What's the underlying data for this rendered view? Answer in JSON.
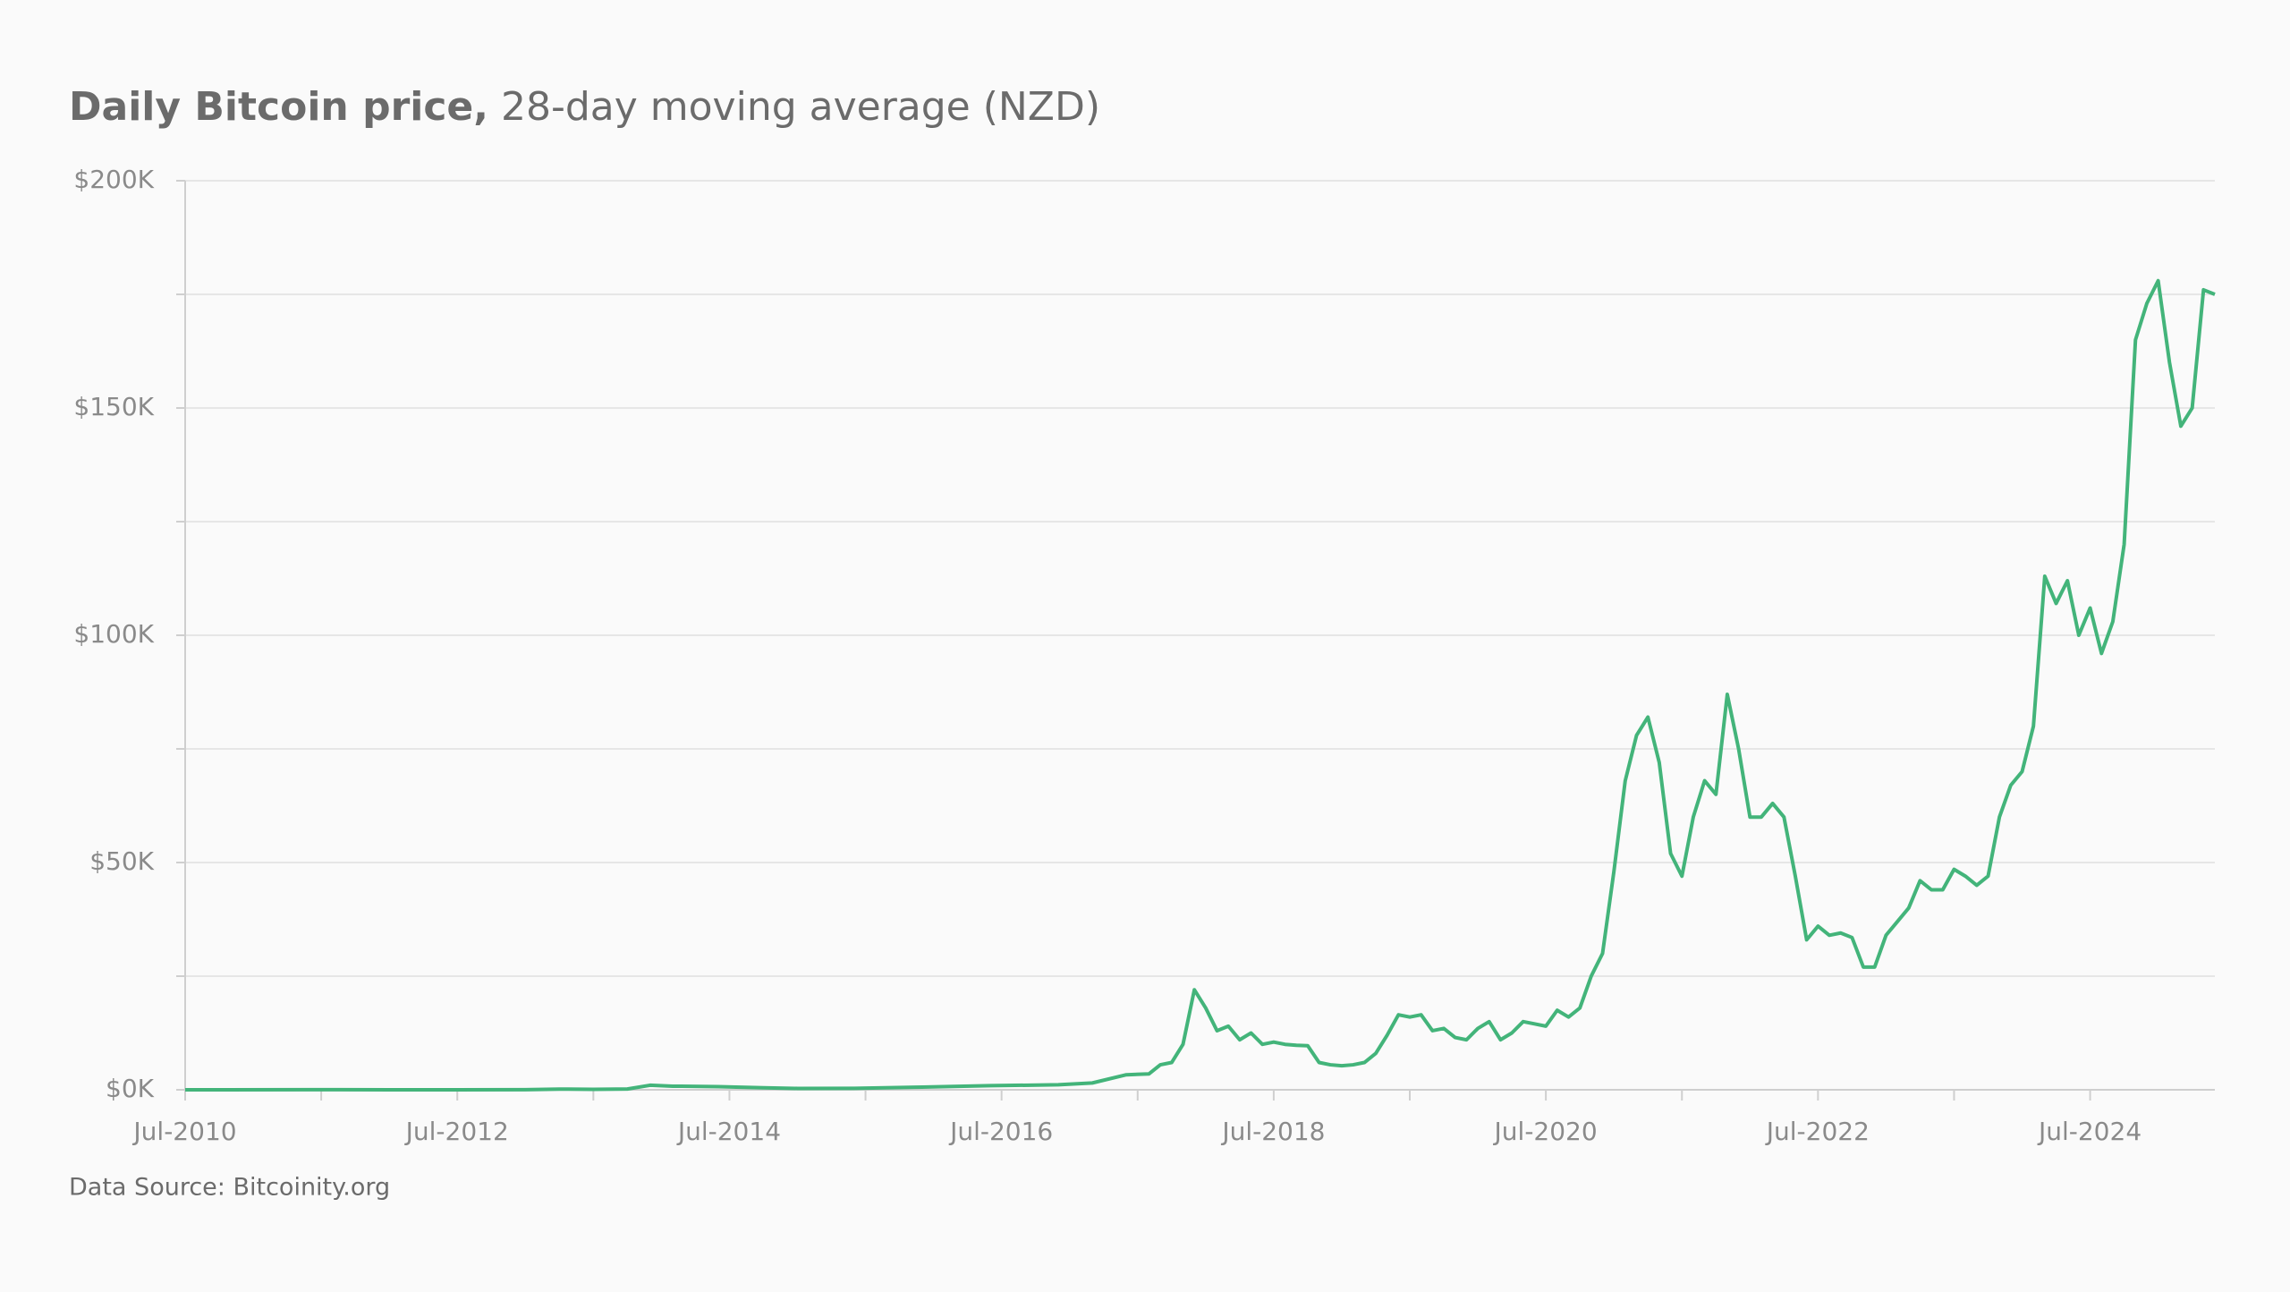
{
  "chart_data": {
    "type": "line",
    "title_bold": "Daily Bitcoin price,",
    "title_rest": "28-day moving average (NZD)",
    "source": "Data Source: Bitcoinity.org",
    "color": "#43b47a",
    "grid": true,
    "x": [
      "2010-07",
      "2011-06",
      "2012-01",
      "2012-07",
      "2013-01",
      "2013-04",
      "2013-07",
      "2013-10",
      "2013-12",
      "2014-02",
      "2014-06",
      "2014-10",
      "2015-01",
      "2015-06",
      "2015-12",
      "2016-06",
      "2016-12",
      "2017-03",
      "2017-06",
      "2017-08",
      "2017-09",
      "2017-10",
      "2017-11",
      "2017-12",
      "2018-01",
      "2018-02",
      "2018-03",
      "2018-04",
      "2018-05",
      "2018-06",
      "2018-07",
      "2018-08",
      "2018-09",
      "2018-10",
      "2018-11",
      "2018-12",
      "2019-01",
      "2019-02",
      "2019-03",
      "2019-04",
      "2019-05",
      "2019-06",
      "2019-07",
      "2019-08",
      "2019-09",
      "2019-10",
      "2019-11",
      "2019-12",
      "2020-01",
      "2020-02",
      "2020-03",
      "2020-04",
      "2020-05",
      "2020-06",
      "2020-07",
      "2020-08",
      "2020-09",
      "2020-10",
      "2020-11",
      "2020-12",
      "2021-01",
      "2021-02",
      "2021-03",
      "2021-04",
      "2021-05",
      "2021-06",
      "2021-07",
      "2021-08",
      "2021-09",
      "2021-10",
      "2021-11",
      "2021-12",
      "2022-01",
      "2022-02",
      "2022-03",
      "2022-04",
      "2022-05",
      "2022-06",
      "2022-07",
      "2022-08",
      "2022-09",
      "2022-10",
      "2022-11",
      "2022-12",
      "2023-01",
      "2023-02",
      "2023-03",
      "2023-04",
      "2023-05",
      "2023-06",
      "2023-07",
      "2023-08",
      "2023-09",
      "2023-10",
      "2023-11",
      "2023-12",
      "2024-01",
      "2024-02",
      "2024-03",
      "2024-04",
      "2024-05",
      "2024-06",
      "2024-07",
      "2024-08",
      "2024-09",
      "2024-10",
      "2024-11",
      "2024-12",
      "2025-01",
      "2025-02",
      "2025-03",
      "2025-04",
      "2025-05",
      "2025-06"
    ],
    "values": [
      0.1,
      20,
      7,
      10,
      16,
      150,
      110,
      170,
      1000,
      800,
      700,
      450,
      300,
      320,
      600,
      900,
      1100,
      1500,
      3300,
      3500,
      5500,
      6000,
      10000,
      22000,
      18000,
      13000,
      14000,
      11000,
      12500,
      10000,
      10500,
      10000,
      9800,
      9700,
      6000,
      5500,
      5300,
      5500,
      6000,
      8000,
      12000,
      16500,
      16000,
      16500,
      13000,
      13500,
      11500,
      11000,
      13500,
      15000,
      11000,
      12500,
      15000,
      14500,
      14000,
      17500,
      16000,
      18000,
      25000,
      30000,
      48000,
      68000,
      78000,
      82000,
      72000,
      52000,
      47000,
      60000,
      68000,
      65000,
      87000,
      75000,
      60000,
      60000,
      63000,
      60000,
      47000,
      33000,
      36000,
      34000,
      34500,
      33500,
      27000,
      27000,
      34000,
      37000,
      40000,
      46000,
      44000,
      44000,
      48500,
      47000,
      45000,
      47000,
      60000,
      67000,
      70000,
      80000,
      113000,
      107000,
      112000,
      100000,
      106000,
      96000,
      103000,
      120000,
      165000,
      173000,
      178000,
      160000,
      146000,
      150000,
      176000,
      175000
    ],
    "xlim": [
      "2010-07",
      "2025-06"
    ],
    "xticks": [
      {
        "value": "2010-07",
        "label": "Jul-2010"
      },
      {
        "value": "2012-07",
        "label": "Jul-2012"
      },
      {
        "value": "2014-07",
        "label": "Jul-2014"
      },
      {
        "value": "2016-07",
        "label": "Jul-2016"
      },
      {
        "value": "2018-07",
        "label": "Jul-2018"
      },
      {
        "value": "2020-07",
        "label": "Jul-2020"
      },
      {
        "value": "2022-07",
        "label": "Jul-2022"
      },
      {
        "value": "2024-07",
        "label": "Jul-2024"
      }
    ],
    "xminor_ticks": [
      "2011-07",
      "2013-07",
      "2015-07",
      "2017-07",
      "2019-07",
      "2021-07",
      "2023-07"
    ],
    "ylim": [
      0,
      200000
    ],
    "yticks": [
      {
        "value": 0,
        "label": "$0K"
      },
      {
        "value": 50000,
        "label": "$50K"
      },
      {
        "value": 100000,
        "label": "$100K"
      },
      {
        "value": 150000,
        "label": "$150K"
      },
      {
        "value": 200000,
        "label": "$200K"
      }
    ],
    "yminor_ticks": [
      25000,
      75000,
      125000,
      175000
    ]
  }
}
